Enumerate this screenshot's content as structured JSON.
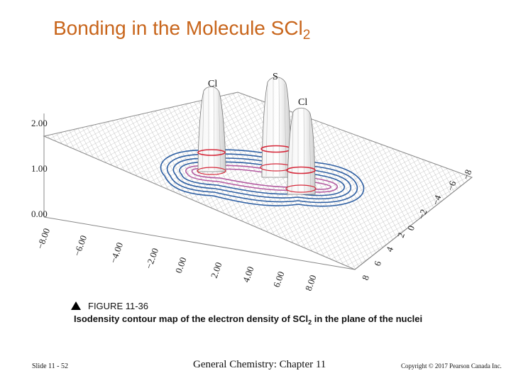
{
  "title": {
    "main": "Bonding in the Molecule SCl",
    "sub": "2"
  },
  "figure": {
    "atoms": {
      "left": "Cl",
      "center": "S",
      "right": "Cl"
    },
    "z_axis_labels": [
      "2.00",
      "1.00",
      "0.00"
    ],
    "front_axis_labels": [
      "−8.00",
      "−6.00",
      "−4.00",
      "−2.00",
      "0.00",
      "2.00",
      "4.00",
      "6.00",
      "8.00"
    ],
    "right_axis_labels": [
      "8",
      "6",
      "4",
      "2",
      "0",
      "−2",
      "−4",
      "−6",
      "−8"
    ],
    "colors": {
      "outer_contours": "#2e5fa3",
      "inner_contours": "#b35aa0",
      "cut_rings": "#d6283a",
      "mesh": "#9a9a9a"
    }
  },
  "caption": {
    "figure_label": "FIGURE 11-36",
    "text_before": "Isodensity contour map of the electron density of SCl",
    "text_sub": "2",
    "text_after": " in the plane of the nuclei"
  },
  "footer": {
    "slide_number": "Slide 11 - 52",
    "course": "General Chemistry: Chapter 11",
    "copyright": "Copyright © 2017 Pearson Canada Inc."
  }
}
